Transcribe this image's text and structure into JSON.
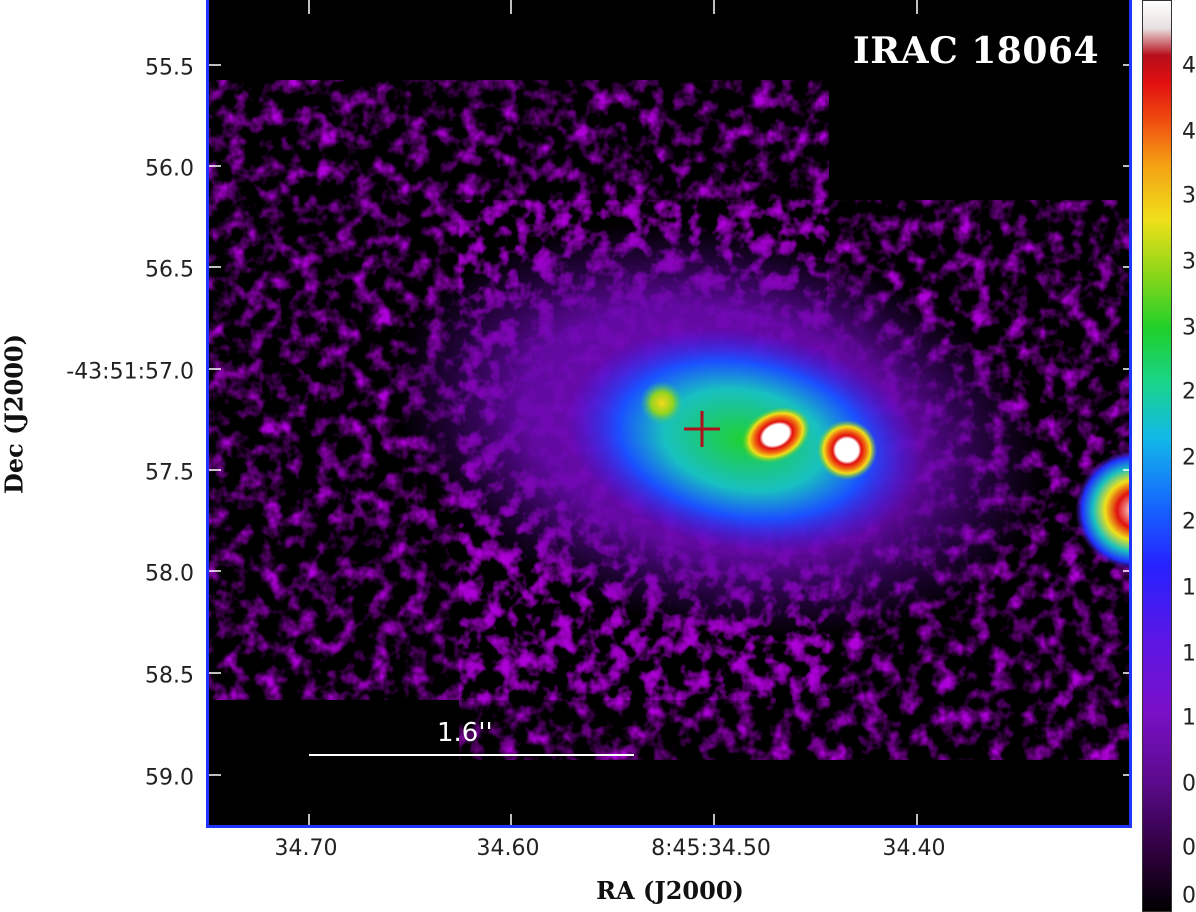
{
  "image": {
    "title": "IRAC 18064",
    "scale_bar_label": "1.6''",
    "x_axis_label": "RA (J2000)",
    "y_axis_label": "Dec (J2000)",
    "x_ticks": [
      "34.70",
      "34.60",
      "8:45:34.50",
      "34.40"
    ],
    "y_ticks": [
      "55.5",
      "56.0",
      "56.5",
      "-43:51:57.0",
      "57.5",
      "58.0",
      "58.5",
      "59.0"
    ],
    "colorbar_ticks": [
      "4",
      "4",
      "3",
      "3",
      "3",
      "2",
      "2",
      "2",
      "1",
      "1",
      "1",
      "0",
      "0",
      "0"
    ],
    "colors": {
      "frame": "#1f35ff",
      "marker": "#b0101a"
    }
  }
}
